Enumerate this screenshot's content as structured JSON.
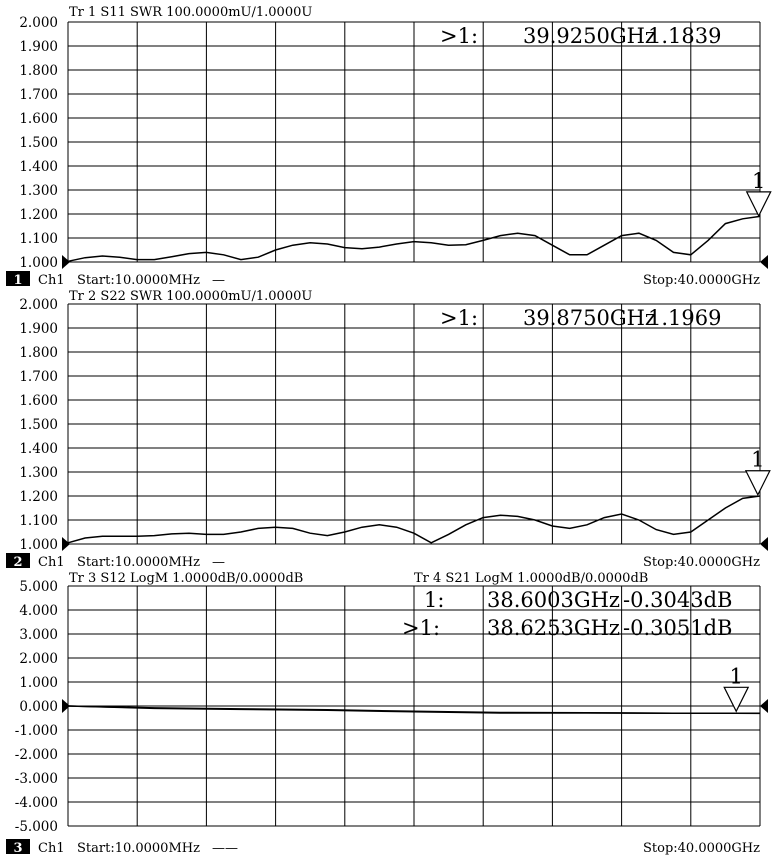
{
  "chart_data": [
    {
      "type": "line",
      "header": "Tr 1  S11 SWR 100.0000mU/1.0000U",
      "ylim": [
        1.0,
        2.0
      ],
      "yticks": [
        "2.000",
        "1.900",
        "1.800",
        "1.700",
        "1.600",
        "1.500",
        "1.400",
        "1.300",
        "1.200",
        "1.100",
        "1.000"
      ],
      "xlim": [
        0.01,
        40.0
      ],
      "x_unit": "GHz",
      "series": [
        {
          "values_x": [
            0.01,
            1,
            2,
            3,
            4,
            5,
            6,
            7,
            8,
            9,
            10,
            11,
            12,
            13,
            14,
            15,
            16,
            17,
            18,
            19,
            20,
            21,
            22,
            23,
            24,
            25,
            26,
            27,
            28,
            29,
            30,
            31,
            32,
            33,
            34,
            35,
            36,
            37,
            38,
            39,
            40
          ],
          "values_y": [
            1.003,
            1.018,
            1.025,
            1.02,
            1.01,
            1.01,
            1.022,
            1.035,
            1.04,
            1.03,
            1.01,
            1.02,
            1.05,
            1.07,
            1.08,
            1.075,
            1.06,
            1.055,
            1.062,
            1.075,
            1.085,
            1.08,
            1.07,
            1.072,
            1.09,
            1.11,
            1.12,
            1.11,
            1.07,
            1.03,
            1.03,
            1.07,
            1.11,
            1.12,
            1.09,
            1.04,
            1.03,
            1.09,
            1.16,
            1.18,
            1.19
          ]
        }
      ],
      "markers": [
        {
          "label": ">1:",
          "freq": "39.9250GHz",
          "value": "1.1839",
          "x": 39.925,
          "y": 1.1839,
          "num": "1"
        }
      ],
      "channel_label": "Ch1",
      "channel_num": "1",
      "start": "Start:10.0000MHz",
      "stop": "Stop:40.0000GHz",
      "legend_dash": "—"
    },
    {
      "type": "line",
      "header": "Tr 2  S22 SWR 100.0000mU/1.0000U",
      "ylim": [
        1.0,
        2.0
      ],
      "yticks": [
        "2.000",
        "1.900",
        "1.800",
        "1.700",
        "1.600",
        "1.500",
        "1.400",
        "1.300",
        "1.200",
        "1.100",
        "1.000"
      ],
      "xlim": [
        0.01,
        40.0
      ],
      "x_unit": "GHz",
      "series": [
        {
          "values_x": [
            0.01,
            1,
            2,
            3,
            4,
            5,
            6,
            7,
            8,
            9,
            10,
            11,
            12,
            13,
            14,
            15,
            16,
            17,
            18,
            19,
            20,
            21,
            22,
            23,
            24,
            25,
            26,
            27,
            28,
            29,
            30,
            31,
            32,
            33,
            34,
            35,
            36,
            37,
            38,
            39,
            40
          ],
          "values_y": [
            1.005,
            1.025,
            1.032,
            1.032,
            1.032,
            1.035,
            1.042,
            1.045,
            1.04,
            1.04,
            1.05,
            1.065,
            1.07,
            1.065,
            1.045,
            1.035,
            1.05,
            1.07,
            1.08,
            1.07,
            1.045,
            1.005,
            1.04,
            1.08,
            1.11,
            1.12,
            1.115,
            1.1,
            1.075,
            1.065,
            1.08,
            1.11,
            1.125,
            1.1,
            1.06,
            1.04,
            1.05,
            1.1,
            1.15,
            1.19,
            1.2
          ]
        }
      ],
      "markers": [
        {
          "label": ">1:",
          "freq": "39.8750GHz",
          "value": "1.1969",
          "x": 39.875,
          "y": 1.1969,
          "num": "1"
        }
      ],
      "channel_label": "Ch1",
      "channel_num": "2",
      "start": "Start:10.0000MHz",
      "stop": "Stop:40.0000GHz",
      "legend_dash": "—"
    },
    {
      "type": "line",
      "header": "Tr 3  S12 LogM 1.0000dB/0.0000dB",
      "header2": "Tr 4  S21 LogM 1.0000dB/0.0000dB",
      "ylim": [
        -5.0,
        5.0
      ],
      "yticks": [
        "5.000",
        "4.000",
        "3.000",
        "2.000",
        "1.000",
        "0.000",
        "-1.000",
        "-2.000",
        "-3.000",
        "-4.000",
        "-5.000"
      ],
      "xlim": [
        0.01,
        40.0
      ],
      "x_unit": "GHz",
      "series": [
        {
          "values_x": [
            0.01,
            5,
            10,
            15,
            20,
            25,
            30,
            35,
            38.6,
            40
          ],
          "values_y": [
            0.0,
            -0.08,
            -0.12,
            -0.16,
            -0.22,
            -0.27,
            -0.28,
            -0.3,
            -0.305,
            -0.31
          ]
        },
        {
          "values_x": [
            0.01,
            5,
            10,
            15,
            20,
            25,
            30,
            35,
            38.6,
            40
          ],
          "values_y": [
            0.0,
            -0.1,
            -0.14,
            -0.18,
            -0.24,
            -0.29,
            -0.29,
            -0.3,
            -0.305,
            -0.3
          ]
        }
      ],
      "markers": [
        {
          "label": "1:",
          "freq": "38.6003GHz",
          "value": "-0.3043dB"
        },
        {
          "label": ">1:",
          "freq": "38.6253GHz",
          "value": "-0.3051dB",
          "x": 38.6253,
          "y": -0.3051,
          "num": "1"
        }
      ],
      "channel_label": "Ch1",
      "channel_num": "3",
      "start": "Start:10.0000MHz",
      "stop": "Stop:40.0000GHz",
      "legend_dash": "——"
    }
  ]
}
